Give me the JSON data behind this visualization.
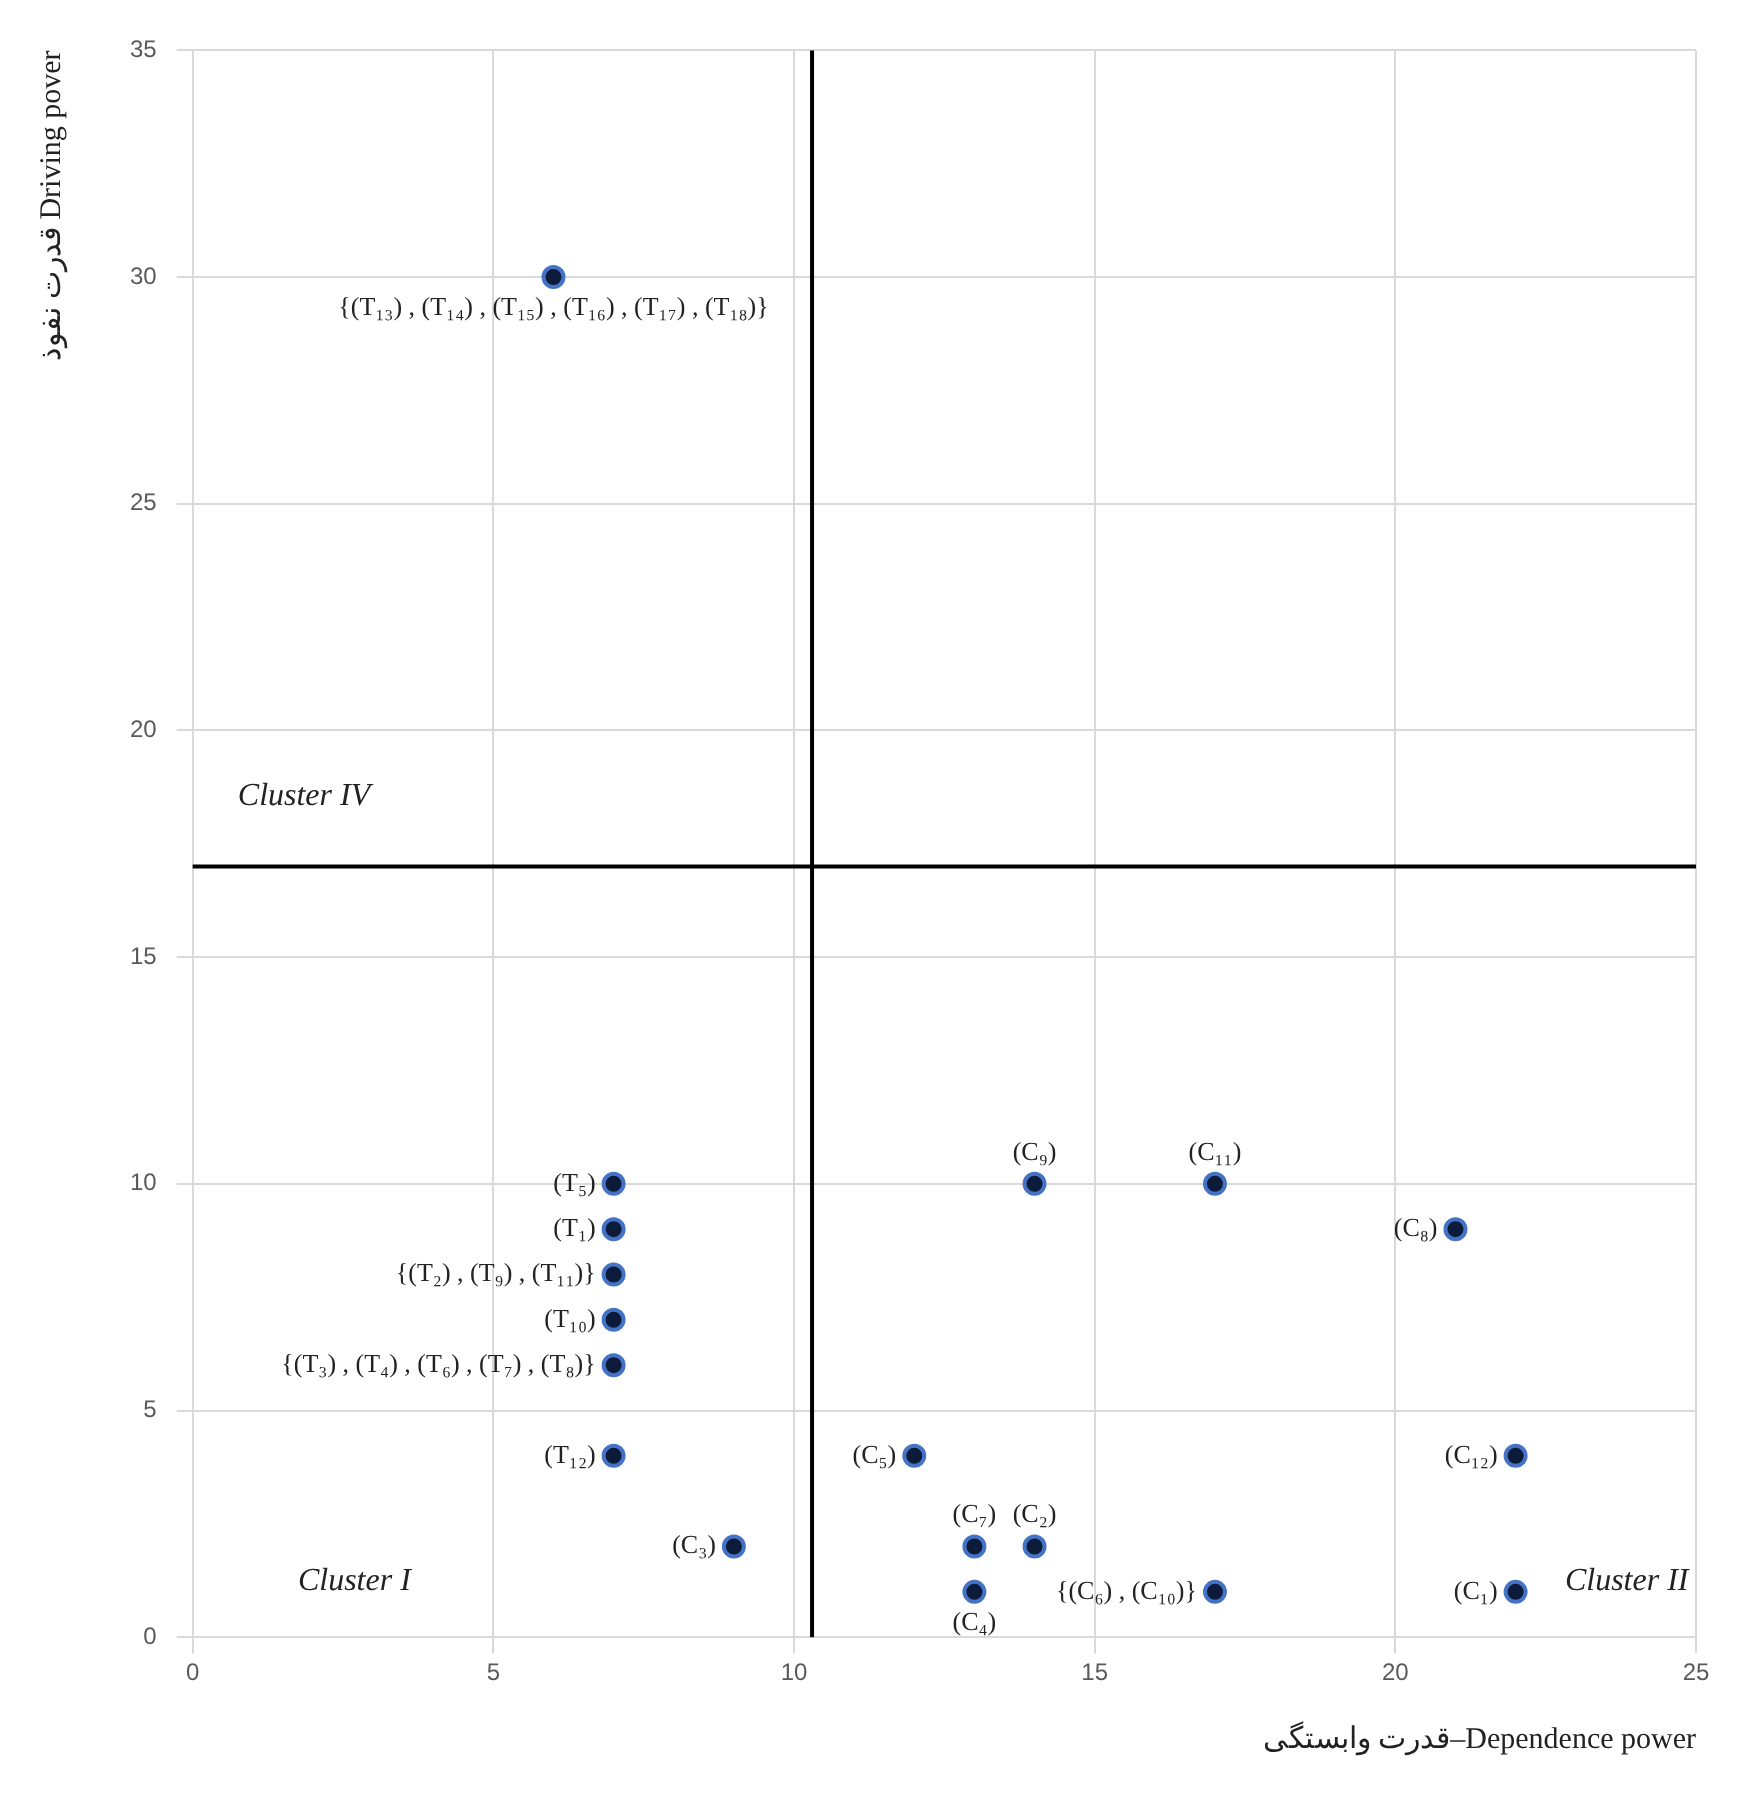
{
  "chart_data": {
    "type": "scatter",
    "xlabel": "قدرت وابستگی–Dependence power",
    "ylabel": "قدرت نفوذ Driving pover",
    "xlim": [
      0,
      25
    ],
    "xticks": [
      0,
      5,
      10,
      15,
      20,
      25
    ],
    "ylim": [
      0,
      35
    ],
    "yticks": [
      0,
      5,
      10,
      15,
      20,
      25,
      30,
      35
    ],
    "grid": true,
    "marker": "circle",
    "legend": false,
    "series": [
      {
        "color": "#0d1b3a",
        "x": [
          6,
          7,
          7,
          7,
          7,
          7,
          7,
          9,
          12,
          13,
          13,
          14,
          14,
          17,
          17,
          21,
          22,
          22
        ],
        "values": [
          30,
          10,
          9,
          8,
          7,
          6,
          4,
          2,
          4,
          2,
          1,
          2,
          10,
          10,
          1,
          9,
          4,
          1
        ],
        "value_labels": [
          "{(T₁₃) , (T₁₄) , (T₁₅) , (T₁₆) , (T₁₇) , (T₁₈)}",
          "(T₅)",
          "(T₁)",
          "{(T₂) , (T₉) , (T₁₁)}",
          "(T₁₀)",
          "{(T₃) , (T₄) , (T₆) , (T₇) , (T₈)}",
          "(T₁₂)",
          "(C₃)",
          "(C₅)",
          "(C₇)",
          "(C₄)",
          "(C₂)",
          "(C₉)",
          "(C₁₁)",
          "{(C₆) , (C₁₀)}",
          "(C₈)",
          "(C₁₂)",
          "(C₁)"
        ]
      }
    ],
    "ref_lines": [
      {
        "axis": "x",
        "value": 10.3,
        "color": "#000000"
      },
      {
        "axis": "y",
        "value": 17,
        "color": "#000000"
      }
    ],
    "annotations": [
      "Cluster IV",
      "Cluster I",
      "Cluster II"
    ]
  }
}
